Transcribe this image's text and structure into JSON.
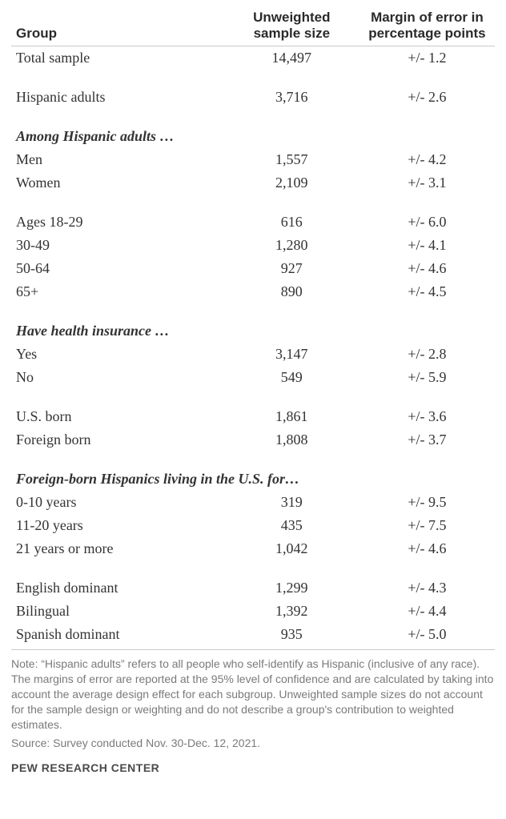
{
  "headers": {
    "group": "Group",
    "sample": "Unweighted sample size",
    "moe": "Margin of error in percentage points"
  },
  "intro_rows": [
    {
      "label": "Total sample",
      "sample": "14,497",
      "moe": "+/- 1.2"
    }
  ],
  "hispanic_row": {
    "label": "Hispanic adults",
    "sample": "3,716",
    "moe": "+/- 2.6"
  },
  "section_among": "Among Hispanic adults …",
  "gender_rows": [
    {
      "label": "Men",
      "sample": "1,557",
      "moe": "+/- 4.2"
    },
    {
      "label": "Women",
      "sample": "2,109",
      "moe": "+/- 3.1"
    }
  ],
  "age_rows": [
    {
      "label": "Ages 18-29",
      "sample": "616",
      "moe": "+/- 6.0"
    },
    {
      "label": "30-49",
      "sample": "1,280",
      "moe": "+/- 4.1"
    },
    {
      "label": "50-64",
      "sample": "927",
      "moe": "+/- 4.6"
    },
    {
      "label": "65+",
      "sample": "890",
      "moe": "+/- 4.5"
    }
  ],
  "section_insurance": "Have health insurance …",
  "insurance_rows": [
    {
      "label": "Yes",
      "sample": "3,147",
      "moe": "+/- 2.8"
    },
    {
      "label": "No",
      "sample": "549",
      "moe": "+/- 5.9"
    }
  ],
  "birth_rows": [
    {
      "label": "U.S. born",
      "sample": "1,861",
      "moe": "+/- 3.6"
    },
    {
      "label": "Foreign born",
      "sample": "1,808",
      "moe": "+/- 3.7"
    }
  ],
  "section_foreign": "Foreign-born Hispanics living in the U.S. for…",
  "foreign_rows": [
    {
      "label": "0-10 years",
      "sample": "319",
      "moe": "+/- 9.5"
    },
    {
      "label": "11-20 years",
      "sample": "435",
      "moe": "+/- 7.5"
    },
    {
      "label": "21 years or more",
      "sample": "1,042",
      "moe": "+/- 4.6"
    }
  ],
  "lang_rows": [
    {
      "label": "English dominant",
      "sample": "1,299",
      "moe": "+/- 4.3"
    },
    {
      "label": "Bilingual",
      "sample": "1,392",
      "moe": "+/- 4.4"
    },
    {
      "label": "Spanish dominant",
      "sample": "935",
      "moe": "+/- 5.0"
    }
  ],
  "note": "Note: “Hispanic adults” refers to all people who self-identify as Hispanic (inclusive of any race). The margins of error are reported at the 95% level of confidence and are calculated by taking into account the average design effect for each subgroup. Unweighted sample sizes do not account for the sample design or weighting and do not describe a group's contribution to weighted estimates.",
  "source": "Source: Survey conducted Nov. 30-Dec. 12, 2021.",
  "attribution": "PEW RESEARCH CENTER",
  "style": {
    "type": "table",
    "body_font_family": "Georgia, serif",
    "header_font_family": "Arial, sans-serif",
    "header_fontsize_pt": 13,
    "body_fontsize_pt": 14,
    "footnote_fontsize_pt": 10.5,
    "text_color": "#333333",
    "footnote_color": "#7a7a7a",
    "border_color": "#c9c9c9",
    "background_color": "#ffffff",
    "column_widths_pct": [
      44,
      28,
      28
    ],
    "alignments": [
      "left",
      "center",
      "center"
    ]
  }
}
